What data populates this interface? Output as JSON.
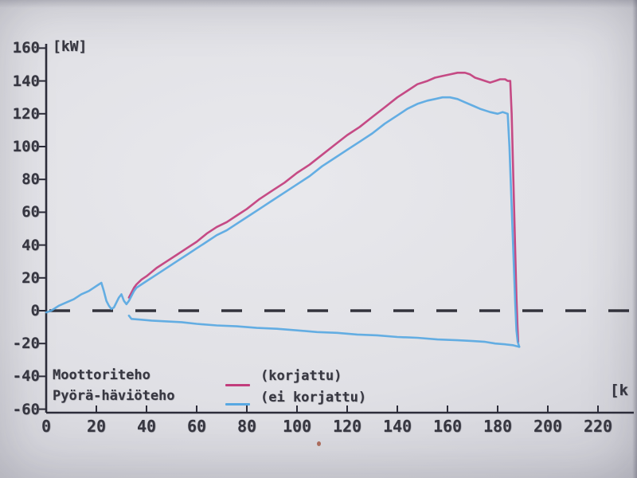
{
  "figure": {
    "kw_label": "[kW]",
    "x_axis_unit_fragment": "[k"
  },
  "legend": {
    "row1_name": "Moottoriteho",
    "row1_qualifier": "(korjattu)",
    "row2_name": "Pyörä-häviöteho",
    "row2_qualifier": "(ei korjattu)"
  },
  "chart_data": {
    "type": "line",
    "title": "",
    "xlabel": "",
    "ylabel": "[kW]",
    "xlim": [
      0,
      236
    ],
    "ylim": [
      -62,
      162
    ],
    "grid": false,
    "legend_position": "bottom-left",
    "zero_line": {
      "style": "dashed",
      "y": 0
    },
    "x_ticks": [
      0,
      20,
      40,
      60,
      80,
      100,
      120,
      140,
      160,
      180,
      200,
      220
    ],
    "y_ticks": [
      160,
      140,
      120,
      100,
      80,
      60,
      40,
      20,
      0,
      -20,
      -40,
      -60
    ],
    "series": [
      {
        "name": "Moottoriteho (korjattu)",
        "color": "#c23d7c",
        "points": [
          [
            33,
            8
          ],
          [
            34,
            11
          ],
          [
            35,
            14
          ],
          [
            36,
            16
          ],
          [
            38,
            19
          ],
          [
            40,
            21
          ],
          [
            44,
            26
          ],
          [
            48,
            30
          ],
          [
            52,
            34
          ],
          [
            56,
            38
          ],
          [
            60,
            42
          ],
          [
            64,
            47
          ],
          [
            68,
            51
          ],
          [
            72,
            54
          ],
          [
            76,
            58
          ],
          [
            80,
            62
          ],
          [
            85,
            68
          ],
          [
            90,
            73
          ],
          [
            95,
            78
          ],
          [
            100,
            84
          ],
          [
            105,
            89
          ],
          [
            110,
            95
          ],
          [
            115,
            101
          ],
          [
            120,
            107
          ],
          [
            125,
            112
          ],
          [
            130,
            118
          ],
          [
            135,
            124
          ],
          [
            140,
            130
          ],
          [
            144,
            134
          ],
          [
            148,
            138
          ],
          [
            152,
            140
          ],
          [
            155,
            142
          ],
          [
            158,
            143
          ],
          [
            161,
            144
          ],
          [
            164,
            145
          ],
          [
            167,
            145
          ],
          [
            169,
            144
          ],
          [
            171,
            142
          ],
          [
            173,
            141
          ],
          [
            175,
            140
          ],
          [
            177,
            139
          ],
          [
            179,
            140
          ],
          [
            181,
            141
          ],
          [
            183,
            141
          ],
          [
            184,
            140
          ],
          [
            185,
            140
          ],
          [
            185.6,
            120
          ],
          [
            186.1,
            90
          ],
          [
            186.6,
            60
          ],
          [
            187.1,
            30
          ],
          [
            187.5,
            8
          ],
          [
            187.9,
            -10
          ],
          [
            188.2,
            -19
          ]
        ]
      },
      {
        "name": "Moottoriteho (ei korjattu)",
        "color": "#58a8e2",
        "points": [
          [
            0,
            -1
          ],
          [
            2,
            0
          ],
          [
            5,
            3
          ],
          [
            8,
            5
          ],
          [
            11,
            7
          ],
          [
            14,
            10
          ],
          [
            17,
            12
          ],
          [
            19,
            14
          ],
          [
            21,
            16
          ],
          [
            22,
            17
          ],
          [
            23,
            12
          ],
          [
            24,
            6
          ],
          [
            25,
            3
          ],
          [
            26,
            1
          ],
          [
            27,
            2
          ],
          [
            28,
            5
          ],
          [
            29,
            8
          ],
          [
            30,
            10
          ],
          [
            31,
            6
          ],
          [
            32,
            4
          ],
          [
            33,
            6
          ],
          [
            34,
            9
          ],
          [
            35,
            12
          ],
          [
            36,
            14
          ],
          [
            38,
            16
          ],
          [
            40,
            18
          ],
          [
            44,
            22
          ],
          [
            48,
            26
          ],
          [
            52,
            30
          ],
          [
            56,
            34
          ],
          [
            60,
            38
          ],
          [
            64,
            42
          ],
          [
            68,
            46
          ],
          [
            72,
            49
          ],
          [
            76,
            53
          ],
          [
            80,
            57
          ],
          [
            85,
            62
          ],
          [
            90,
            67
          ],
          [
            95,
            72
          ],
          [
            100,
            77
          ],
          [
            105,
            82
          ],
          [
            110,
            88
          ],
          [
            115,
            93
          ],
          [
            120,
            98
          ],
          [
            125,
            103
          ],
          [
            130,
            108
          ],
          [
            135,
            114
          ],
          [
            140,
            119
          ],
          [
            144,
            123
          ],
          [
            148,
            126
          ],
          [
            152,
            128
          ],
          [
            155,
            129
          ],
          [
            158,
            130
          ],
          [
            161,
            130
          ],
          [
            164,
            129
          ],
          [
            167,
            127
          ],
          [
            170,
            125
          ],
          [
            173,
            123
          ],
          [
            175,
            122
          ],
          [
            177,
            121
          ],
          [
            180,
            120
          ],
          [
            182,
            121
          ],
          [
            184,
            120
          ],
          [
            184.7,
            100
          ],
          [
            185.3,
            75
          ],
          [
            185.9,
            50
          ],
          [
            186.5,
            25
          ],
          [
            187,
            5
          ],
          [
            187.5,
            -12
          ],
          [
            188,
            -19
          ],
          [
            188.6,
            -22
          ]
        ]
      },
      {
        "name": "Pyörä-häviöteho (ei korjattu)",
        "color": "#58a8e2",
        "points": [
          [
            33,
            -3
          ],
          [
            34,
            -5
          ],
          [
            38,
            -5.5
          ],
          [
            42,
            -6
          ],
          [
            48,
            -6.5
          ],
          [
            54,
            -7
          ],
          [
            60,
            -8
          ],
          [
            68,
            -9
          ],
          [
            76,
            -9.5
          ],
          [
            84,
            -10.5
          ],
          [
            92,
            -11
          ],
          [
            100,
            -12
          ],
          [
            108,
            -13
          ],
          [
            116,
            -13.5
          ],
          [
            124,
            -14.5
          ],
          [
            132,
            -15
          ],
          [
            140,
            -16
          ],
          [
            148,
            -16.5
          ],
          [
            156,
            -17.5
          ],
          [
            164,
            -18
          ],
          [
            170,
            -18.5
          ],
          [
            175,
            -19
          ],
          [
            179,
            -20
          ],
          [
            183,
            -20.5
          ],
          [
            186,
            -21
          ],
          [
            188,
            -21.8
          ],
          [
            188.6,
            -22
          ]
        ]
      }
    ]
  }
}
